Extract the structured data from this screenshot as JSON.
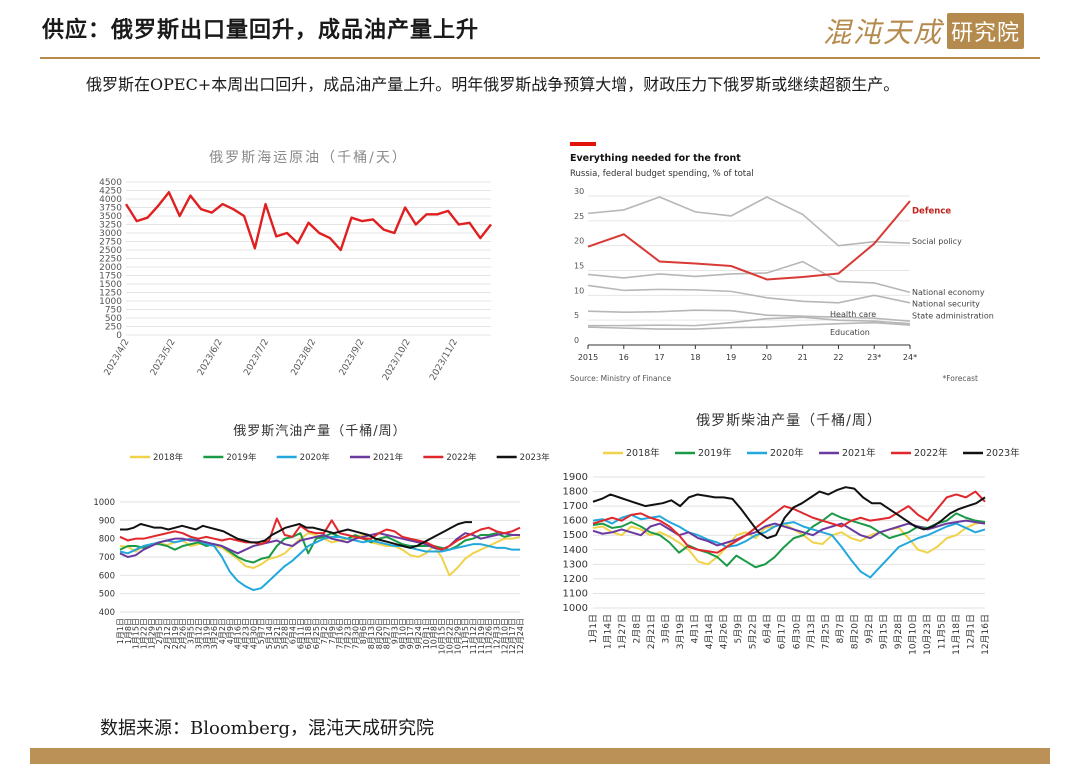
{
  "header": {
    "title": "供应：俄罗斯出口量回升，成品油产量上升",
    "logo_main": "混沌天成",
    "logo_box": "研究院"
  },
  "summary": "俄罗斯在OPEC+本周出口回升，成品油产量上升。明年俄罗斯战争预算大增，财政压力下俄罗斯或继续超额生产。",
  "source": "数据来源：Bloomberg，混沌天成研究院",
  "chart_data": [
    {
      "id": "crude",
      "type": "line",
      "title": "俄罗斯海运原油（千桶/天）",
      "ylim": [
        0,
        4500
      ],
      "yticks": [
        0,
        250,
        500,
        750,
        1000,
        1250,
        1500,
        1750,
        2000,
        2250,
        2500,
        2750,
        3000,
        3250,
        3500,
        3750,
        4000,
        4250,
        4500
      ],
      "xticks": [
        {
          "label": "2023/4/2",
          "i": 0
        },
        {
          "label": "2023/5/2",
          "i": 4.3
        },
        {
          "label": "2023/6/2",
          "i": 8.7
        },
        {
          "label": "2023/7/2",
          "i": 13
        },
        {
          "label": "2023/8/2",
          "i": 17.4
        },
        {
          "label": "2023/9/2",
          "i": 21.9
        },
        {
          "label": "2023/10/2",
          "i": 26.2
        },
        {
          "label": "2023/11/2",
          "i": 30.6
        }
      ],
      "series": [
        {
          "color": "#e02020",
          "values": [
            3850,
            3350,
            3450,
            3800,
            4200,
            3500,
            4100,
            3700,
            3600,
            3850,
            3700,
            3500,
            2550,
            3850,
            2900,
            3000,
            2700,
            3300,
            3000,
            2850,
            2500,
            3450,
            3350,
            3400,
            3100,
            3000,
            3750,
            3250,
            3550,
            3550,
            3650,
            3250,
            3300,
            2850,
            3250
          ]
        }
      ]
    },
    {
      "id": "budget",
      "type": "line",
      "title": "Everything needed for the front",
      "subtitle": "Russia, federal budget spending, % of total",
      "source": "Source: Ministry of Finance",
      "footnote": "*Forecast",
      "ylim": [
        0,
        30
      ],
      "yticks": [
        0,
        5,
        10,
        15,
        20,
        25,
        30
      ],
      "categories": [
        "2015",
        "16",
        "17",
        "18",
        "19",
        "20",
        "21",
        "22",
        "23*",
        "24*"
      ],
      "series": [
        {
          "name": "Defence",
          "color": "#d83a36",
          "label_color": "#c0221d",
          "bold": true,
          "values": [
            19.8,
            22.3,
            16.8,
            16.4,
            15.9,
            13.2,
            13.7,
            14.4,
            20.4,
            29.0
          ]
        },
        {
          "name": "Social policy",
          "color": "#b7b7b7",
          "values": [
            26.5,
            27.2,
            29.8,
            26.8,
            26.0,
            29.8,
            26.3,
            20.0,
            20.8,
            20.5
          ]
        },
        {
          "name": "National economy",
          "color": "#b7b7b7",
          "values": [
            14.2,
            13.5,
            14.3,
            13.8,
            14.3,
            14.5,
            16.8,
            12.8,
            12.5,
            10.6
          ]
        },
        {
          "name": "National security",
          "color": "#b7b7b7",
          "values": [
            12.0,
            11.0,
            11.2,
            11.1,
            10.8,
            9.5,
            8.8,
            8.5,
            10.0,
            8.5
          ]
        },
        {
          "name": "State administration",
          "color": "#b7b7b7",
          "values": [
            6.8,
            6.6,
            6.7,
            7.0,
            6.9,
            6.0,
            5.8,
            5.6,
            5.4,
            4.8
          ]
        },
        {
          "name": "Health care",
          "color": "#b7b7b7",
          "values": [
            3.9,
            3.9,
            4.0,
            3.9,
            4.5,
            5.3,
            5.6,
            5.0,
            4.8,
            4.3
          ]
        },
        {
          "name": "Education",
          "color": "#b7b7b7",
          "values": [
            3.6,
            3.4,
            3.2,
            3.2,
            3.5,
            3.6,
            4.0,
            4.3,
            4.5,
            4.0
          ]
        }
      ]
    },
    {
      "id": "gasoline",
      "type": "line",
      "title": "俄罗斯汽油产量（千桶/周）",
      "ylim": [
        400,
        1000
      ],
      "yticks": [
        400,
        500,
        600,
        700,
        800,
        900,
        1000
      ],
      "xlabels": [
        "1月1日",
        "1月8日",
        "1月15日",
        "1月22日",
        "1月29日",
        "2月5日",
        "2月12日",
        "2月19日",
        "2月26日",
        "3月5日",
        "3月12日",
        "3月19日",
        "3月26日",
        "4月2日",
        "4月9日",
        "4月16日",
        "4月23日",
        "4月30日",
        "5月7日",
        "5月14日",
        "5月21日",
        "5月28日",
        "6月4日",
        "6月11日",
        "6月18日",
        "6月25日",
        "7月2日",
        "7月9日",
        "7月16日",
        "7月23日",
        "7月30日",
        "8月6日",
        "8月13日",
        "8月20日",
        "8月27日",
        "9月3日",
        "9月10日",
        "9月17日",
        "9月24日",
        "10月1日",
        "10月8日",
        "10月15日",
        "10月22日",
        "10月29日",
        "11月5日",
        "11月12日",
        "11月19日",
        "11月26日",
        "12月3日",
        "12月10日",
        "12月17日",
        "12月24日"
      ],
      "legend": [
        "2018年",
        "2019年",
        "2020年",
        "2021年",
        "2022年",
        "2023年"
      ],
      "series": [
        {
          "name": "2018年",
          "color": "#f0d34a",
          "values": [
            760,
            755,
            730,
            760,
            770,
            775,
            765,
            780,
            790,
            760,
            770,
            780,
            760,
            750,
            720,
            690,
            650,
            640,
            660,
            690,
            700,
            720,
            760,
            800,
            830,
            820,
            800,
            780,
            790,
            800,
            810,
            820,
            780,
            770,
            760,
            760,
            740,
            710,
            700,
            720,
            760,
            700,
            600,
            640,
            690,
            720,
            740,
            760,
            780,
            800,
            800,
            810
          ]
        },
        {
          "name": "2019年",
          "color": "#1a9a46",
          "values": [
            740,
            760,
            760,
            750,
            770,
            770,
            760,
            740,
            760,
            770,
            780,
            760,
            770,
            760,
            730,
            700,
            680,
            670,
            690,
            700,
            760,
            800,
            810,
            830,
            720,
            800,
            810,
            830,
            810,
            800,
            820,
            800,
            780,
            800,
            810,
            790,
            770,
            760,
            760,
            760,
            760,
            750,
            740,
            760,
            790,
            800,
            820,
            820,
            830,
            810,
            820,
            820
          ]
        },
        {
          "name": "2020年",
          "color": "#22a8dc",
          "values": [
            730,
            720,
            740,
            760,
            770,
            780,
            790,
            780,
            790,
            800,
            790,
            770,
            760,
            700,
            620,
            570,
            540,
            520,
            530,
            570,
            610,
            650,
            680,
            720,
            760,
            780,
            800,
            810,
            810,
            800,
            790,
            780,
            790,
            780,
            770,
            760,
            760,
            750,
            740,
            730,
            730,
            730,
            740,
            750,
            760,
            770,
            770,
            760,
            750,
            750,
            740,
            740
          ]
        },
        {
          "name": "2021年",
          "color": "#6a3aa0",
          "values": [
            720,
            700,
            710,
            740,
            760,
            780,
            790,
            800,
            800,
            790,
            790,
            780,
            770,
            760,
            740,
            720,
            740,
            760,
            770,
            780,
            790,
            770,
            760,
            790,
            800,
            810,
            820,
            800,
            790,
            780,
            800,
            810,
            820,
            830,
            820,
            810,
            800,
            790,
            780,
            770,
            750,
            740,
            760,
            800,
            830,
            820,
            800,
            810,
            820,
            830,
            820,
            820
          ]
        },
        {
          "name": "2022年",
          "color": "#e0282c",
          "values": [
            810,
            790,
            800,
            800,
            810,
            820,
            830,
            840,
            830,
            810,
            800,
            810,
            800,
            790,
            800,
            790,
            780,
            780,
            770,
            790,
            910,
            820,
            810,
            870,
            840,
            830,
            830,
            900,
            830,
            820,
            810,
            800,
            800,
            830,
            850,
            840,
            810,
            800,
            790,
            780,
            760,
            740,
            760,
            790,
            810,
            830,
            850,
            860,
            840,
            830,
            840,
            860
          ]
        },
        {
          "name": "2023年",
          "color": "#111111",
          "values": [
            850,
            850,
            860,
            880,
            870,
            860,
            860,
            850,
            860,
            870,
            860,
            850,
            870,
            860,
            850,
            840,
            820,
            800,
            790,
            780,
            780,
            790,
            820,
            840,
            860,
            870,
            880,
            860,
            860,
            850,
            840,
            830,
            840,
            850,
            840,
            830,
            820,
            800,
            790,
            780,
            770,
            760,
            750,
            760,
            780,
            800,
            820,
            840,
            860,
            880,
            890,
            890
          ]
        }
      ]
    },
    {
      "id": "diesel",
      "type": "line",
      "title": "俄罗斯柴油产量（千桶/周）",
      "ylim": [
        1000,
        1900
      ],
      "yticks": [
        1000,
        1100,
        1200,
        1300,
        1400,
        1500,
        1600,
        1700,
        1800,
        1900
      ],
      "xlabels": [
        "1月1日",
        "1月14日",
        "1月27日",
        "2月8日",
        "2月21日",
        "3月6日",
        "3月19日",
        "4月1日",
        "4月14日",
        "4月26日",
        "5月9日",
        "5月22日",
        "6月4日",
        "6月17日",
        "6月30日",
        "7月13日",
        "7月25日",
        "8月7日",
        "8月20日",
        "9月2日",
        "9月15日",
        "9月28日",
        "10月10日",
        "10月23日",
        "11月5日",
        "11月18日",
        "12月1日",
        "12月16日"
      ],
      "legend": [
        "2018年",
        "2019年",
        "2020年",
        "2021年",
        "2022年",
        "2023年"
      ],
      "series": [
        {
          "name": "2018年",
          "color": "#f0d34a",
          "values": [
            1550,
            1560,
            1520,
            1500,
            1560,
            1540,
            1500,
            1520,
            1490,
            1450,
            1400,
            1320,
            1300,
            1350,
            1420,
            1500,
            1520,
            1480,
            1550,
            1560,
            1580,
            1540,
            1500,
            1450,
            1440,
            1500,
            1520,
            1480,
            1460,
            1500,
            1520,
            1540,
            1550,
            1480,
            1400,
            1380,
            1420,
            1480,
            1500,
            1550,
            1580,
            1590
          ]
        },
        {
          "name": "2019年",
          "color": "#1a9a46",
          "values": [
            1570,
            1580,
            1550,
            1560,
            1590,
            1560,
            1520,
            1500,
            1450,
            1380,
            1430,
            1400,
            1380,
            1350,
            1290,
            1360,
            1320,
            1280,
            1300,
            1350,
            1420,
            1480,
            1500,
            1560,
            1600,
            1650,
            1620,
            1600,
            1580,
            1560,
            1520,
            1480,
            1500,
            1520,
            1560,
            1550,
            1580,
            1600,
            1650,
            1620,
            1600,
            1590
          ]
        },
        {
          "name": "2020年",
          "color": "#22a8dc",
          "values": [
            1600,
            1610,
            1580,
            1620,
            1640,
            1610,
            1620,
            1630,
            1590,
            1560,
            1520,
            1500,
            1470,
            1450,
            1420,
            1430,
            1460,
            1500,
            1520,
            1560,
            1580,
            1590,
            1560,
            1540,
            1520,
            1500,
            1420,
            1330,
            1250,
            1210,
            1280,
            1350,
            1420,
            1450,
            1480,
            1500,
            1530,
            1560,
            1580,
            1550,
            1520,
            1540
          ]
        },
        {
          "name": "2021年",
          "color": "#6a3aa0",
          "values": [
            1530,
            1510,
            1520,
            1540,
            1520,
            1500,
            1560,
            1580,
            1540,
            1500,
            1520,
            1480,
            1460,
            1430,
            1450,
            1470,
            1500,
            1520,
            1560,
            1580,
            1560,
            1540,
            1520,
            1500,
            1540,
            1560,
            1580,
            1540,
            1500,
            1480,
            1520,
            1540,
            1560,
            1580,
            1560,
            1540,
            1560,
            1580,
            1590,
            1600,
            1590,
            1580
          ]
        },
        {
          "name": "2022年",
          "color": "#e0282c",
          "values": [
            1580,
            1600,
            1620,
            1600,
            1640,
            1650,
            1620,
            1600,
            1560,
            1500,
            1420,
            1400,
            1390,
            1380,
            1420,
            1460,
            1500,
            1550,
            1600,
            1650,
            1700,
            1680,
            1650,
            1620,
            1600,
            1580,
            1560,
            1600,
            1620,
            1600,
            1610,
            1620,
            1660,
            1700,
            1640,
            1600,
            1680,
            1760,
            1780,
            1760,
            1800,
            1730
          ]
        },
        {
          "name": "2023年",
          "color": "#111111",
          "values": [
            1730,
            1750,
            1780,
            1760,
            1740,
            1720,
            1700,
            1710,
            1720,
            1740,
            1700,
            1760,
            1780,
            1770,
            1760,
            1760,
            1750,
            1680,
            1600,
            1520,
            1480,
            1500,
            1620,
            1690,
            1720,
            1760,
            1800,
            1780,
            1810,
            1830,
            1820,
            1760,
            1720,
            1720,
            1680,
            1640,
            1600,
            1560,
            1540,
            1560,
            1600,
            1650,
            1680,
            1700,
            1720,
            1760
          ]
        }
      ]
    }
  ]
}
